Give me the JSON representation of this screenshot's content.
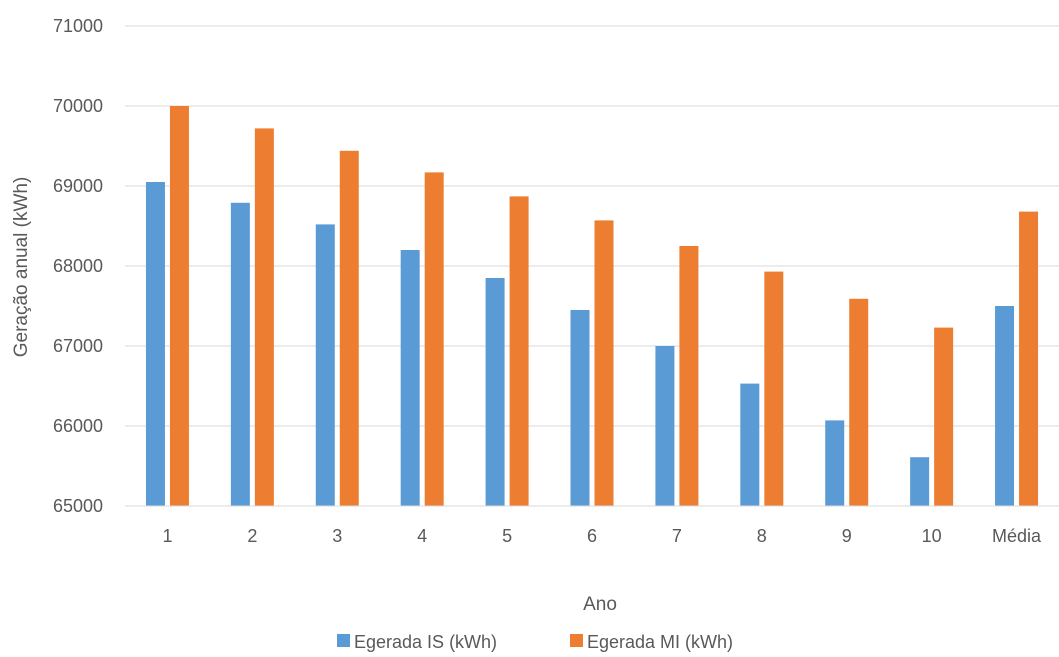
{
  "chart_data": {
    "type": "bar",
    "title": "",
    "xlabel": "Ano",
    "ylabel": "Geração anual (kWh)",
    "categories": [
      "1",
      "2",
      "3",
      "4",
      "5",
      "6",
      "7",
      "8",
      "9",
      "10",
      "Média"
    ],
    "ylim": [
      65000,
      71000
    ],
    "yticks": [
      65000,
      66000,
      67000,
      68000,
      69000,
      70000,
      71000
    ],
    "grid": true,
    "legend_position": "bottom",
    "series": [
      {
        "name": "Egerada IS (kWh)",
        "color": "#5B9BD5",
        "values": [
          69050,
          68790,
          68520,
          68200,
          67850,
          67450,
          67000,
          66530,
          66070,
          65610,
          67500
        ]
      },
      {
        "name": "Egerada MI (kWh)",
        "color": "#ED7D31",
        "values": [
          70000,
          69720,
          69440,
          69170,
          68870,
          68570,
          68250,
          67930,
          67590,
          67230,
          68680
        ]
      }
    ]
  }
}
